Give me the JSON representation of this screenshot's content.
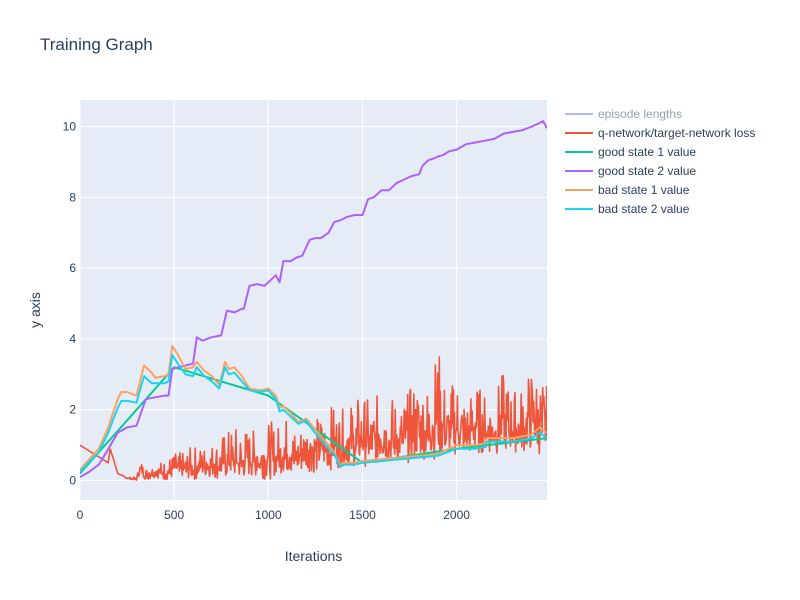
{
  "chart_data": {
    "type": "line",
    "title": "Training Graph",
    "xlabel": "Iterations",
    "ylabel": "y axis",
    "xlim": [
      0,
      2480
    ],
    "ylim": [
      -0.55,
      10.75
    ],
    "x_ticks": [
      0,
      500,
      1000,
      1500,
      2000
    ],
    "x_tick_labels": [
      "0",
      "500",
      "1000",
      "1500",
      "2000"
    ],
    "y_ticks": [
      0,
      2,
      4,
      6,
      8,
      10
    ],
    "y_tick_labels": [
      "0",
      "2",
      "4",
      "6",
      "8",
      "10"
    ],
    "grid": true,
    "legend_position": "right",
    "plot_background": "#e5ecf6",
    "series": [
      {
        "name": "episode lengths",
        "color": "#636efa",
        "hidden": true,
        "x": [],
        "y": []
      },
      {
        "name": "q-network/target-network loss",
        "color": "#ef553b",
        "noisy": true,
        "x": [
          0,
          60,
          120,
          150,
          160,
          200,
          250,
          300,
          320,
          350,
          400,
          450,
          500,
          550,
          600,
          650,
          700,
          750,
          800,
          850,
          900,
          950,
          1000,
          1050,
          1100,
          1150,
          1200,
          1250,
          1300,
          1350,
          1400,
          1450,
          1500,
          1550,
          1600,
          1650,
          1700,
          1750,
          1800,
          1850,
          1900,
          1950,
          2000,
          2050,
          2100,
          2150,
          2200,
          2250,
          2300,
          2350,
          2400,
          2450,
          2480
        ],
        "y_low": [
          1.0,
          0.8,
          0.6,
          0.5,
          0.9,
          0.2,
          0.05,
          0.0,
          0.2,
          0.0,
          0.1,
          0.0,
          0.05,
          0.1,
          0.0,
          0.1,
          0.1,
          0.0,
          0.1,
          0.0,
          0.1,
          0.1,
          0.0,
          0.2,
          0.2,
          0.1,
          0.3,
          0.2,
          0.3,
          0.3,
          0.4,
          0.4,
          0.4,
          0.4,
          0.5,
          0.5,
          0.5,
          0.5,
          0.6,
          0.6,
          0.6,
          0.7,
          0.7,
          0.7,
          0.7,
          0.8,
          0.7,
          0.8,
          0.8,
          0.8,
          0.8,
          0.7,
          0.7
        ],
        "y_high": [
          1.0,
          0.8,
          0.6,
          0.5,
          0.95,
          0.2,
          0.1,
          0.1,
          0.6,
          0.4,
          0.5,
          0.6,
          0.8,
          0.8,
          1.0,
          1.0,
          1.1,
          1.3,
          1.5,
          1.6,
          1.5,
          1.4,
          1.7,
          1.6,
          1.9,
          1.5,
          1.9,
          1.8,
          2.0,
          2.2,
          2.0,
          2.3,
          2.5,
          2.2,
          2.6,
          2.5,
          2.2,
          2.6,
          3.1,
          2.8,
          3.9,
          2.5,
          3.1,
          2.4,
          2.8,
          2.5,
          2.6,
          3.1,
          2.6,
          2.7,
          3.3,
          3.0,
          2.7
        ]
      },
      {
        "name": "good state 1 value",
        "color": "#00cc96",
        "x": [
          0,
          500,
          1000,
          1500,
          2000,
          2480
        ],
        "y": [
          0.2,
          3.2,
          2.4,
          0.5,
          0.9,
          1.2
        ]
      },
      {
        "name": "good state 2 value",
        "color": "#ab63fa",
        "x": [
          0,
          50,
          100,
          140,
          200,
          250,
          300,
          330,
          350,
          400,
          450,
          470,
          490,
          520,
          560,
          600,
          620,
          650,
          700,
          750,
          780,
          820,
          860,
          870,
          900,
          940,
          980,
          1000,
          1040,
          1060,
          1080,
          1120,
          1150,
          1180,
          1220,
          1250,
          1280,
          1320,
          1350,
          1380,
          1420,
          1460,
          1500,
          1530,
          1560,
          1600,
          1640,
          1680,
          1720,
          1760,
          1800,
          1820,
          1850,
          1880,
          1900,
          1930,
          1960,
          2000,
          2050,
          2100,
          2150,
          2200,
          2250,
          2300,
          2350,
          2400,
          2440,
          2460,
          2480
        ],
        "y": [
          0.1,
          0.25,
          0.45,
          0.8,
          1.35,
          1.5,
          1.55,
          2.0,
          2.3,
          2.35,
          2.4,
          2.4,
          3.15,
          3.2,
          3.25,
          3.3,
          4.05,
          3.95,
          4.05,
          4.1,
          4.8,
          4.75,
          4.85,
          4.85,
          5.5,
          5.55,
          5.5,
          5.6,
          5.8,
          5.6,
          6.2,
          6.2,
          6.3,
          6.35,
          6.8,
          6.85,
          6.85,
          7.0,
          7.3,
          7.35,
          7.45,
          7.5,
          7.5,
          7.95,
          8.0,
          8.2,
          8.2,
          8.4,
          8.5,
          8.6,
          8.65,
          8.9,
          9.05,
          9.1,
          9.15,
          9.2,
          9.3,
          9.35,
          9.5,
          9.55,
          9.6,
          9.65,
          9.8,
          9.85,
          9.9,
          10.0,
          10.1,
          10.15,
          9.95
        ]
      },
      {
        "name": "bad state 1 value",
        "color": "#ffa15a",
        "x": [
          0,
          100,
          150,
          200,
          220,
          250,
          300,
          340,
          380,
          400,
          450,
          470,
          490,
          520,
          560,
          600,
          620,
          660,
          700,
          740,
          770,
          790,
          820,
          860,
          900,
          960,
          1000,
          1040,
          1060,
          1080,
          1120,
          1160,
          1200,
          1240,
          1280,
          1320,
          1350,
          1380,
          1400,
          1450,
          1500,
          1600,
          1700,
          1800,
          1900,
          2000,
          2050,
          2100,
          2150,
          2160,
          2200,
          2300,
          2400,
          2440,
          2480
        ],
        "y": [
          0.3,
          0.9,
          1.5,
          2.3,
          2.5,
          2.5,
          2.4,
          3.25,
          3.05,
          2.9,
          2.95,
          3.0,
          3.8,
          3.55,
          3.15,
          3.2,
          3.35,
          3.1,
          2.95,
          2.7,
          3.35,
          3.15,
          3.2,
          2.95,
          2.6,
          2.55,
          2.6,
          2.4,
          2.05,
          2.1,
          1.9,
          1.65,
          1.75,
          1.5,
          1.25,
          1.0,
          0.8,
          0.45,
          0.5,
          0.5,
          0.55,
          0.6,
          0.65,
          0.7,
          0.75,
          1.0,
          1.0,
          1.0,
          1.05,
          1.2,
          1.2,
          1.2,
          1.3,
          1.5,
          1.35
        ]
      },
      {
        "name": "bad state 2 value",
        "color": "#19d3f3",
        "x": [
          0,
          100,
          150,
          200,
          220,
          250,
          300,
          340,
          380,
          400,
          450,
          470,
          490,
          520,
          560,
          600,
          620,
          660,
          700,
          740,
          770,
          790,
          820,
          860,
          900,
          960,
          1000,
          1040,
          1060,
          1080,
          1120,
          1160,
          1200,
          1240,
          1280,
          1320,
          1350,
          1380,
          1400,
          1450,
          1500,
          1600,
          1700,
          1800,
          1900,
          2000,
          2050,
          2100,
          2150,
          2160,
          2200,
          2300,
          2400,
          2440,
          2480
        ],
        "y": [
          0.25,
          0.8,
          1.35,
          2.05,
          2.25,
          2.25,
          2.2,
          2.95,
          2.75,
          2.75,
          2.75,
          2.8,
          3.55,
          3.3,
          3.0,
          2.95,
          3.2,
          2.95,
          2.8,
          2.6,
          3.2,
          3.0,
          3.05,
          2.8,
          2.55,
          2.5,
          2.55,
          2.3,
          1.95,
          2.0,
          1.8,
          1.6,
          1.7,
          1.4,
          1.15,
          0.9,
          0.75,
          0.4,
          0.45,
          0.45,
          0.5,
          0.55,
          0.6,
          0.65,
          0.7,
          0.9,
          0.9,
          0.9,
          0.95,
          1.1,
          1.1,
          1.1,
          1.2,
          1.35,
          1.2
        ]
      }
    ]
  }
}
